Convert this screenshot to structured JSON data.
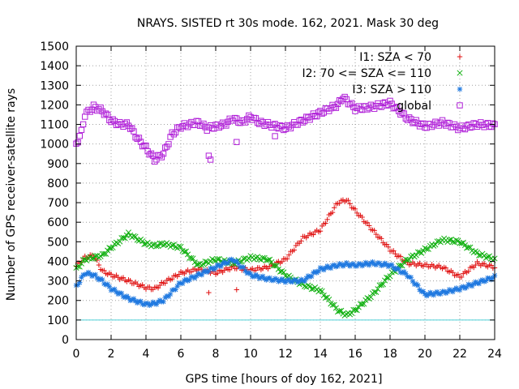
{
  "chart_data": {
    "type": "scatter",
    "title": "NRAYS. SISTED rt 30s mode. 162, 2021. Mask 30 deg",
    "xlabel": "GPS time [hours of doy 162, 2021]",
    "ylabel": "Number of GPS receiver-satellite rays",
    "xlim": [
      0,
      24
    ],
    "ylim": [
      0,
      1500
    ],
    "x_ticks": [
      0,
      2,
      4,
      6,
      8,
      10,
      12,
      14,
      16,
      18,
      20,
      22,
      24
    ],
    "y_ticks": [
      0,
      100,
      200,
      300,
      400,
      500,
      600,
      700,
      800,
      900,
      1000,
      1100,
      1200,
      1300,
      1400,
      1500
    ],
    "grid": true,
    "legend_position": "top-right",
    "reference_line": {
      "y": 100,
      "color": "#4fd0d8"
    },
    "series": [
      {
        "name": "I1: SZA < 70",
        "marker": "plus",
        "color": "#e01010",
        "x": [
          0,
          0.5,
          1,
          1.5,
          2,
          3,
          4,
          4.5,
          5,
          6,
          7,
          8,
          9,
          10,
          11,
          12,
          13,
          14,
          15,
          15.5,
          16,
          17,
          18,
          19,
          20,
          21,
          22,
          23,
          24
        ],
        "y": [
          375,
          420,
          430,
          350,
          330,
          300,
          265,
          260,
          290,
          340,
          360,
          340,
          370,
          355,
          370,
          410,
          520,
          560,
          700,
          715,
          660,
          560,
          460,
          390,
          380,
          370,
          320,
          390,
          370
        ]
      },
      {
        "name": "I2: 70 <= SZA <= 110",
        "marker": "cross",
        "color": "#10b010",
        "x": [
          0,
          0.5,
          1,
          1.5,
          2,
          3,
          4,
          4.5,
          5,
          6,
          7,
          8,
          9,
          10,
          11,
          12,
          13,
          14,
          15,
          15.5,
          16,
          17,
          18,
          19,
          20,
          21,
          22,
          23,
          24
        ],
        "y": [
          360,
          410,
          420,
          430,
          470,
          540,
          490,
          480,
          490,
          470,
          380,
          410,
          390,
          420,
          410,
          330,
          280,
          250,
          150,
          125,
          150,
          230,
          330,
          410,
          460,
          510,
          500,
          440,
          410
        ]
      },
      {
        "name": "I3: SZA > 110",
        "marker": "star",
        "color": "#1e78e0",
        "x": [
          0,
          0.5,
          1,
          1.5,
          2,
          3,
          4,
          4.5,
          5,
          6,
          7,
          8,
          9,
          10,
          11,
          12,
          13,
          14,
          15,
          15.5,
          16,
          17,
          18,
          19,
          20,
          21,
          22,
          23,
          24
        ],
        "y": [
          270,
          340,
          330,
          300,
          260,
          210,
          180,
          185,
          200,
          290,
          330,
          370,
          410,
          330,
          310,
          300,
          300,
          360,
          380,
          385,
          380,
          390,
          380,
          330,
          230,
          240,
          260,
          290,
          320
        ]
      },
      {
        "name": "global",
        "marker": "square",
        "color": "#b020d8",
        "x": [
          0,
          0.3,
          0.5,
          1,
          1.5,
          2,
          2.5,
          3,
          3.5,
          4,
          4.5,
          5,
          5.5,
          6,
          7,
          7.5,
          8,
          8.5,
          9,
          9.5,
          10,
          10.5,
          11,
          12,
          13,
          14,
          15,
          15.3,
          16,
          17,
          18,
          19,
          20,
          21,
          22,
          23,
          24
        ],
        "y": [
          1000,
          1060,
          1150,
          1190,
          1170,
          1120,
          1100,
          1100,
          1030,
          980,
          920,
          950,
          1050,
          1090,
          1110,
          1080,
          1090,
          1100,
          1130,
          1110,
          1140,
          1110,
          1100,
          1080,
          1120,
          1160,
          1200,
          1240,
          1180,
          1190,
          1210,
          1130,
          1090,
          1110,
          1080,
          1100,
          1095
        ]
      }
    ],
    "outliers": [
      {
        "series": "global",
        "x": [
          7.6,
          7.7,
          9.2,
          11.4
        ],
        "y": [
          940,
          920,
          1010,
          1040
        ]
      },
      {
        "series": "I1: SZA < 70",
        "x": [
          7.6,
          9.2
        ],
        "y": [
          240,
          255
        ]
      }
    ]
  }
}
